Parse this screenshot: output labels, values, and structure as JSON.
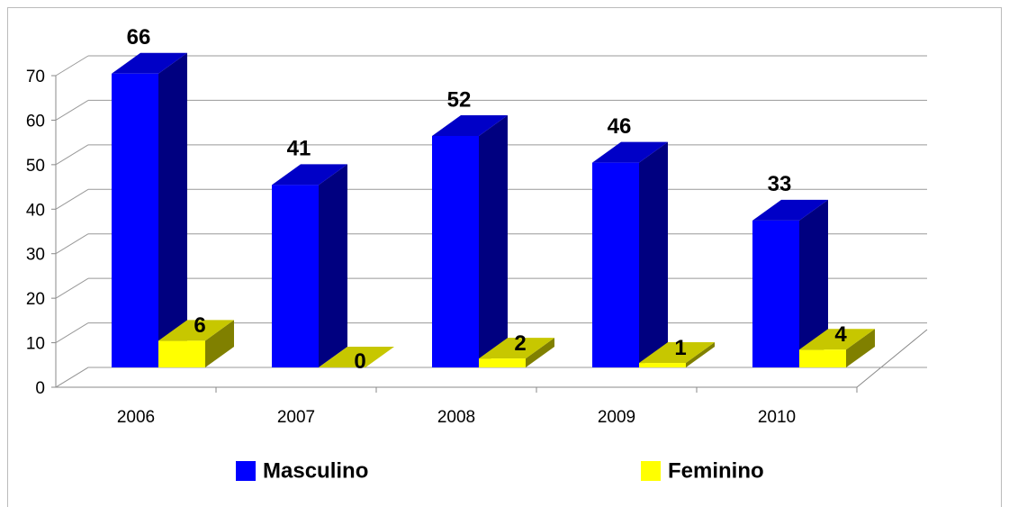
{
  "chart_data": {
    "type": "bar3d",
    "categories": [
      "2006",
      "2007",
      "2008",
      "2009",
      "2010"
    ],
    "series": [
      {
        "name": "Masculino",
        "color": "#0000ff",
        "values": [
          66,
          41,
          52,
          46,
          33
        ]
      },
      {
        "name": "Feminino",
        "color": "#ffff00",
        "values": [
          6,
          0,
          2,
          1,
          4
        ]
      }
    ],
    "ylim": [
      0,
      70
    ],
    "yticks": [
      0,
      10,
      20,
      30,
      40,
      50,
      60,
      70
    ],
    "grid": true,
    "legend": "bottom"
  }
}
